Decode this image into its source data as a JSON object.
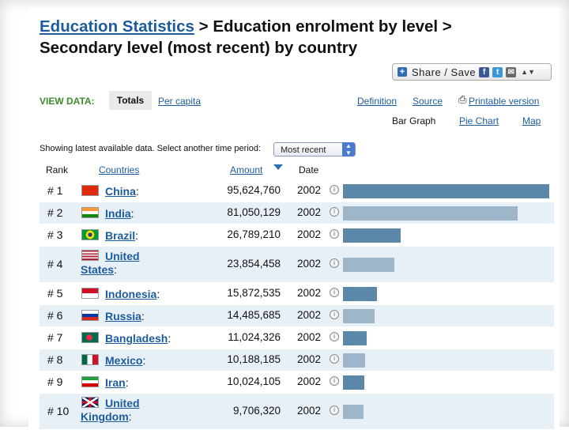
{
  "breadcrumb": {
    "root": "Education Statistics",
    "sep1": " > ",
    "level1": "Education enrolment by level",
    "sep2": " > ",
    "level2": "Secondary level (most recent) by country"
  },
  "share": {
    "label": "Share / Save",
    "icons": [
      "plus-icon",
      "facebook-icon",
      "twitter-icon",
      "email-icon"
    ]
  },
  "view_tabs": {
    "view_data_label": "VIEW DATA:",
    "totals": "Totals",
    "per_capita": "Per capita",
    "definition": "Definition",
    "source": "Source",
    "printable": "Printable version"
  },
  "chart_tabs": {
    "bar_graph": "Bar Graph",
    "pie_chart": "Pie Chart",
    "map": "Map"
  },
  "filter": {
    "text": "Showing latest available data. Select another time period:",
    "selected": "Most recent"
  },
  "table": {
    "headers": {
      "rank": "Rank",
      "countries": "Countries",
      "amount": "Amount",
      "date": "Date"
    },
    "rows": [
      {
        "rank": "# 1",
        "country": "China",
        "amount": "95,624,760",
        "value": 95624760,
        "date": "2002",
        "flag": "china"
      },
      {
        "rank": "# 2",
        "country": "India",
        "amount": "81,050,129",
        "value": 81050129,
        "date": "2002",
        "flag": "india"
      },
      {
        "rank": "# 3",
        "country": "Brazil",
        "amount": "26,789,210",
        "value": 26789210,
        "date": "2002",
        "flag": "brazil"
      },
      {
        "rank": "# 4",
        "country": "United States",
        "amount": "23,854,458",
        "value": 23854458,
        "date": "2002",
        "flag": "usa"
      },
      {
        "rank": "# 5",
        "country": "Indonesia",
        "amount": "15,872,535",
        "value": 15872535,
        "date": "2002",
        "flag": "indonesia"
      },
      {
        "rank": "# 6",
        "country": "Russia",
        "amount": "14,485,685",
        "value": 14485685,
        "date": "2002",
        "flag": "russia"
      },
      {
        "rank": "# 7",
        "country": "Bangladesh",
        "amount": "11,024,326",
        "value": 11024326,
        "date": "2002",
        "flag": "bangladesh"
      },
      {
        "rank": "# 8",
        "country": "Mexico",
        "amount": "10,188,185",
        "value": 10188185,
        "date": "2002",
        "flag": "mexico"
      },
      {
        "rank": "# 9",
        "country": "Iran",
        "amount": "10,024,105",
        "value": 10024105,
        "date": "2002",
        "flag": "iran"
      },
      {
        "rank": "# 10",
        "country": "United Kingdom",
        "amount": "9,706,320",
        "value": 9706320,
        "date": "2002",
        "flag": "uk"
      }
    ]
  },
  "colors": {
    "link": "#1c5c9e",
    "bar_dark": "#5b87a8",
    "bar_light": "#9db6c9",
    "row_alt": "#e8f0f7",
    "view_green": "#3d8a2c"
  }
}
